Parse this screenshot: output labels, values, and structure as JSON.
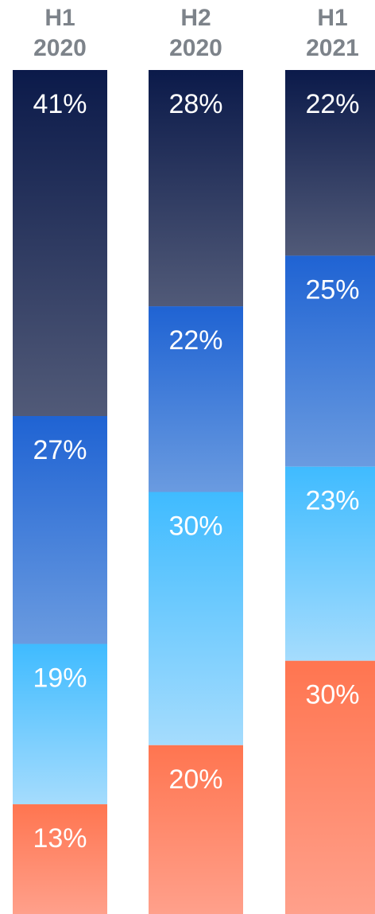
{
  "chart_data": {
    "type": "bar",
    "stacked": true,
    "normalized": true,
    "categories": [
      [
        "H1",
        "2020"
      ],
      [
        "H2",
        "2020"
      ],
      [
        "H1",
        "2021"
      ]
    ],
    "series": [
      {
        "values": [
          41,
          28,
          22
        ],
        "labels": [
          "41%",
          "28%",
          "22%"
        ],
        "gradient": [
          "#0b1a4a",
          "#515a78"
        ]
      },
      {
        "values": [
          27,
          22,
          25
        ],
        "labels": [
          "27%",
          "22%",
          "25%"
        ],
        "gradient": [
          "#1f63d3",
          "#6a9be0"
        ]
      },
      {
        "values": [
          19,
          30,
          23
        ],
        "labels": [
          "19%",
          "30%",
          "23%"
        ],
        "gradient": [
          "#3fbbff",
          "#a5dcfd"
        ]
      },
      {
        "values": [
          13,
          20,
          30
        ],
        "labels": [
          "13%",
          "20%",
          "30%"
        ],
        "gradient": [
          "#ff7550",
          "#ffa08b"
        ]
      }
    ],
    "ylim": [
      0,
      100
    ],
    "legend": "none",
    "grid": false
  }
}
